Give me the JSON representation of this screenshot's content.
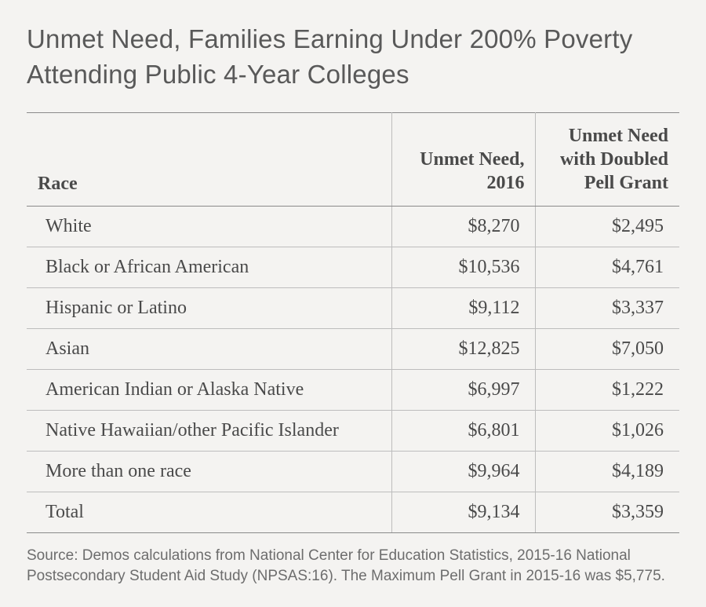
{
  "title_line1": "Unmet Need, Families Earning Under 200% Poverty",
  "title_line2": "Attending Public 4-Year Colleges",
  "table": {
    "type": "table",
    "background_color": "#f4f3f1",
    "rule_color_heavy": "#8a8a8a",
    "rule_color_light": "#bdbdbd",
    "header_fontsize_pt": 18,
    "body_fontsize_pt": 18,
    "title_fontsize_pt": 25,
    "columns": [
      {
        "label": "Race",
        "align": "left",
        "width_pct": 56
      },
      {
        "label": "Unmet Need, 2016",
        "align": "right",
        "width_pct": 22
      },
      {
        "label": "Unmet Need with Doubled Pell Grant",
        "align": "right",
        "width_pct": 22
      }
    ],
    "rows": [
      {
        "race": "White",
        "unmet": "$8,270",
        "doubled": "$2,495"
      },
      {
        "race": "Black or African American",
        "unmet": "$10,536",
        "doubled": "$4,761"
      },
      {
        "race": "Hispanic or Latino",
        "unmet": "$9,112",
        "doubled": "$3,337"
      },
      {
        "race": "Asian",
        "unmet": "$12,825",
        "doubled": "$7,050"
      },
      {
        "race": "American Indian or Alaska Native",
        "unmet": "$6,997",
        "doubled": "$1,222"
      },
      {
        "race": "Native Hawaiian/other Pacific Islander",
        "unmet": "$6,801",
        "doubled": "$1,026"
      },
      {
        "race": "More than one race",
        "unmet": "$9,964",
        "doubled": "$4,189"
      },
      {
        "race": "Total",
        "unmet": "$9,134",
        "doubled": "$3,359"
      }
    ]
  },
  "source": "Source: Demos calculations from National Center for Education Statistics, 2015-16 National Postsecondary Student Aid Study (NPSAS:16). The Maximum Pell Grant in 2015-16 was $5,775."
}
